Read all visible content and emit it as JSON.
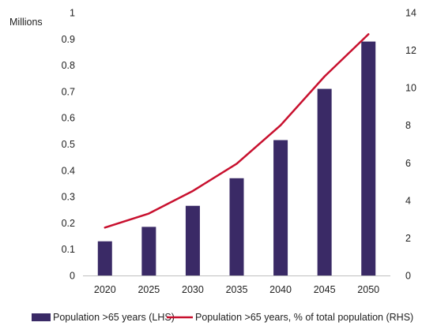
{
  "chart_data": {
    "type": "bar",
    "categories": [
      "2020",
      "2025",
      "2030",
      "2035",
      "2040",
      "2045",
      "2050"
    ],
    "series": [
      {
        "name": "Population >65 years (LHS)",
        "type": "bar",
        "axis": "left",
        "color": "#3a2a66",
        "values": [
          0.13,
          0.185,
          0.265,
          0.37,
          0.515,
          0.71,
          0.89
        ]
      },
      {
        "name": "Population >65 years, % of total population (RHS)",
        "type": "line",
        "axis": "right",
        "color": "#c8102e",
        "values": [
          2.55,
          3.3,
          4.5,
          5.95,
          8.0,
          10.6,
          12.85
        ]
      }
    ],
    "left_axis": {
      "unit_label": "Millions",
      "ylim": [
        0,
        1
      ],
      "ticks": [
        "0",
        "0.1",
        "0.2",
        "0.3",
        "0.4",
        "0.5",
        "0.6",
        "0.7",
        "0.8",
        "0.9",
        "1"
      ]
    },
    "right_axis": {
      "ylim": [
        0,
        14
      ],
      "ticks": [
        "0",
        "2",
        "4",
        "6",
        "8",
        "10",
        "12",
        "14"
      ]
    },
    "grid": false,
    "legend_position": "bottom"
  }
}
